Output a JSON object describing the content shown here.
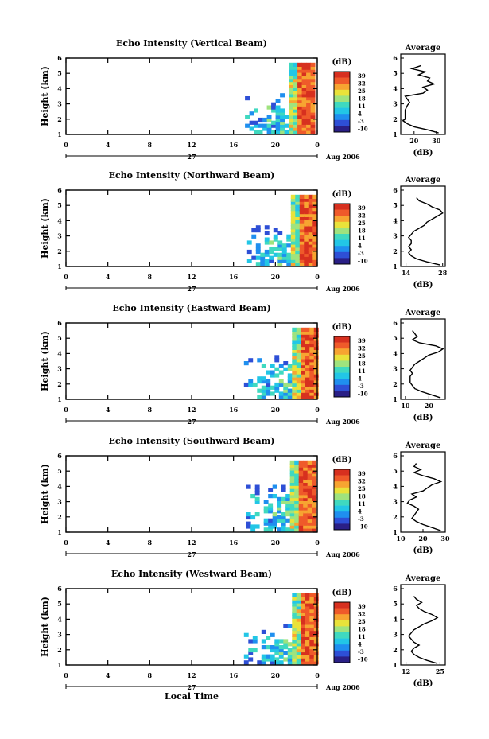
{
  "figure": {
    "bottom_xlabel": "Local Time",
    "date_label": "Aug 2006",
    "day_label": "27",
    "colorbar_unit": "(dB)",
    "profile_title": "Average",
    "profile_xlabel": "(dB)",
    "height_label": "Height (km)"
  },
  "colors": {
    "colormap": [
      "#2a1f86",
      "#2e4fd6",
      "#1f8fef",
      "#22c6e6",
      "#3fd9c0",
      "#9fe37e",
      "#e9e23a",
      "#f7a431",
      "#ef5a2a",
      "#d7301f"
    ]
  },
  "chart_data": [
    {
      "type": "heatmap",
      "title": "Echo Intensity (Vertical Beam)",
      "ylabel": "Height (km)",
      "xticks": [
        "0",
        "4",
        "8",
        "12",
        "16",
        "20",
        "0"
      ],
      "xlim": [
        0,
        24
      ],
      "yticks": [
        "1",
        "2",
        "3",
        "4",
        "5",
        "6"
      ],
      "ylim": [
        1,
        6
      ],
      "colorbar_ticks": [
        "39",
        "32",
        "25",
        "18",
        "11",
        "4",
        "-3",
        "-10"
      ],
      "colorbar_range": [
        -10,
        39
      ],
      "echo_start_hour": 17.1,
      "echo_low_top_km": 3.0,
      "profile": {
        "title": "Average",
        "xlabel": "(dB)",
        "xticks": [
          "20",
          "30"
        ],
        "xlim": [
          14,
          34
        ],
        "height_km": [
          1.1,
          1.3,
          1.5,
          1.7,
          1.9,
          2.0,
          2.3,
          2.6,
          2.9,
          3.1,
          3.3,
          3.5,
          3.7,
          3.9,
          4.1,
          4.3,
          4.5,
          4.7,
          4.9,
          5.1,
          5.3,
          5.5
        ],
        "values_db": [
          31,
          26,
          20,
          17,
          15,
          16,
          16,
          16,
          17,
          18,
          17,
          16,
          24,
          26,
          24,
          29,
          26,
          27,
          22,
          25,
          19,
          23
        ]
      }
    },
    {
      "type": "heatmap",
      "title": "Echo Intensity (Northward Beam)",
      "ylabel": "Height (km)",
      "xticks": [
        "0",
        "4",
        "8",
        "12",
        "16",
        "20",
        "0"
      ],
      "xlim": [
        0,
        24
      ],
      "yticks": [
        "1",
        "2",
        "3",
        "4",
        "5",
        "6"
      ],
      "ylim": [
        1,
        6
      ],
      "colorbar_ticks": [
        "39",
        "32",
        "25",
        "18",
        "11",
        "4",
        "-3",
        "-10"
      ],
      "colorbar_range": [
        -10,
        39
      ],
      "echo_start_hour": 17.3,
      "echo_low_top_km": 2.9,
      "profile": {
        "title": "Average",
        "xlabel": "(dB)",
        "xticks": [
          "14",
          "28"
        ],
        "xlim": [
          12,
          29
        ],
        "height_km": [
          1.1,
          1.3,
          1.5,
          1.7,
          1.9,
          2.1,
          2.3,
          2.5,
          2.7,
          2.9,
          3.1,
          3.3,
          3.5,
          3.7,
          3.9,
          4.1,
          4.3,
          4.5,
          4.7,
          4.9,
          5.1,
          5.3,
          5.5
        ],
        "values_db": [
          27,
          22,
          18,
          16,
          15,
          16,
          15,
          16,
          16,
          15,
          16,
          17,
          19,
          21,
          22,
          24,
          26,
          28,
          27,
          24,
          22,
          19,
          18
        ]
      }
    },
    {
      "type": "heatmap",
      "title": "Echo Intensity (Eastward Beam)",
      "ylabel": "Height (km)",
      "xticks": [
        "0",
        "4",
        "8",
        "12",
        "16",
        "20",
        "0"
      ],
      "xlim": [
        0,
        24
      ],
      "yticks": [
        "1",
        "2",
        "3",
        "4",
        "5",
        "6"
      ],
      "ylim": [
        1,
        6
      ],
      "colorbar_ticks": [
        "39",
        "32",
        "25",
        "18",
        "11",
        "4",
        "-3",
        "-10"
      ],
      "colorbar_range": [
        -10,
        39
      ],
      "echo_start_hour": 17.0,
      "echo_low_top_km": 3.1,
      "profile": {
        "title": "Average",
        "xlabel": "(dB)",
        "xticks": [
          "10",
          "20"
        ],
        "xlim": [
          8,
          27
        ],
        "height_km": [
          1.1,
          1.3,
          1.5,
          1.7,
          1.9,
          2.1,
          2.3,
          2.5,
          2.7,
          2.9,
          3.1,
          3.3,
          3.5,
          3.7,
          3.9,
          4.1,
          4.3,
          4.5,
          4.7,
          4.9,
          5.1,
          5.3,
          5.5
        ],
        "values_db": [
          25,
          21,
          17,
          14,
          13,
          12,
          12,
          12,
          13,
          12,
          13,
          14,
          16,
          18,
          20,
          24,
          26,
          23,
          16,
          13,
          15,
          14,
          13
        ]
      }
    },
    {
      "type": "heatmap",
      "title": "Echo Intensity (Southward Beam)",
      "ylabel": "Height (km)",
      "xticks": [
        "0",
        "4",
        "8",
        "12",
        "16",
        "20",
        "0"
      ],
      "xlim": [
        0,
        24
      ],
      "yticks": [
        "1",
        "2",
        "3",
        "4",
        "5",
        "6"
      ],
      "ylim": [
        1,
        6
      ],
      "colorbar_ticks": [
        "39",
        "32",
        "25",
        "18",
        "11",
        "4",
        "-3",
        "-10"
      ],
      "colorbar_range": [
        -10,
        39
      ],
      "echo_start_hour": 16.8,
      "echo_low_top_km": 3.3,
      "profile": {
        "title": "Average",
        "xlabel": "(dB)",
        "xticks": [
          "10",
          "20",
          "30"
        ],
        "xlim": [
          10,
          30
        ],
        "height_km": [
          1.1,
          1.3,
          1.5,
          1.7,
          1.9,
          2.1,
          2.3,
          2.5,
          2.7,
          2.9,
          3.1,
          3.3,
          3.5,
          3.7,
          3.9,
          4.1,
          4.3,
          4.5,
          4.7,
          4.9,
          5.1,
          5.3,
          5.5
        ],
        "values_db": [
          28,
          24,
          20,
          17,
          15,
          16,
          17,
          18,
          16,
          13,
          14,
          17,
          15,
          20,
          22,
          24,
          28,
          25,
          20,
          16,
          19,
          16,
          17
        ]
      }
    },
    {
      "type": "heatmap",
      "title": "Echo Intensity (Westward Beam)",
      "ylabel": "Height (km)",
      "xticks": [
        "0",
        "4",
        "8",
        "12",
        "16",
        "20",
        "0"
      ],
      "xlim": [
        0,
        24
      ],
      "yticks": [
        "1",
        "2",
        "3",
        "4",
        "5",
        "6"
      ],
      "ylim": [
        1,
        6
      ],
      "colorbar_ticks": [
        "39",
        "32",
        "25",
        "18",
        "11",
        "4",
        "-3",
        "-10"
      ],
      "colorbar_range": [
        -10,
        39
      ],
      "echo_start_hour": 17.0,
      "echo_low_top_km": 2.9,
      "profile": {
        "title": "Average",
        "xlabel": "(dB)",
        "xticks": [
          "12",
          "25"
        ],
        "xlim": [
          10,
          27
        ],
        "height_km": [
          1.1,
          1.3,
          1.5,
          1.7,
          1.9,
          2.1,
          2.3,
          2.5,
          2.7,
          2.9,
          3.1,
          3.3,
          3.5,
          3.7,
          3.9,
          4.1,
          4.3,
          4.5,
          4.7,
          4.9,
          5.1,
          5.3,
          5.5
        ],
        "values_db": [
          24,
          20,
          17,
          15,
          14,
          15,
          17,
          15,
          14,
          13,
          14,
          15,
          17,
          19,
          22,
          24,
          22,
          19,
          17,
          16,
          18,
          16,
          15
        ]
      }
    }
  ]
}
